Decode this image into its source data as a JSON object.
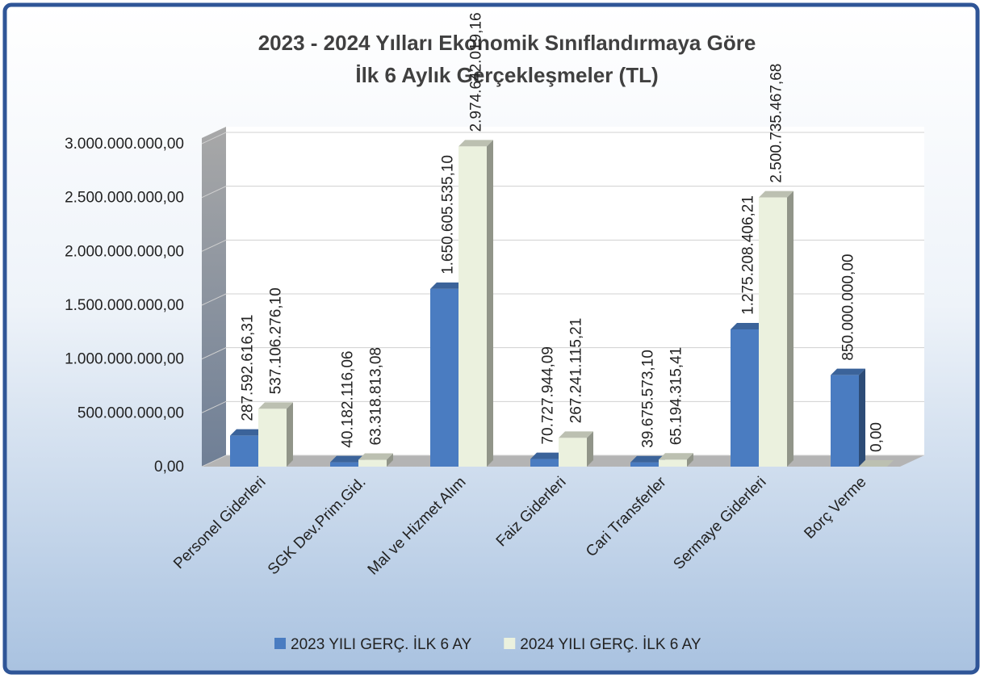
{
  "chart_data": {
    "type": "bar3d",
    "title": [
      "2023 - 2024 Yılları Ekonomik Sınıflandırmaya Göre",
      "İlk 6 Aylık Gerçekleşmeler (TL)"
    ],
    "categories": [
      "Personel Giderleri",
      "SGK Dev.Prim.Gid.",
      "Mal ve Hizmet Alım",
      "Faiz Giderleri",
      "Cari Transferler",
      "Sermaye Giderleri",
      "Borç Verme"
    ],
    "series": [
      {
        "name": "2023 YILI GERÇ. İLK 6 AY",
        "color": "#4a7cc1",
        "values": [
          287592616.31,
          40182116.06,
          1650605535.1,
          70727944.09,
          39675573.1,
          1275208406.21,
          850000000.0
        ],
        "value_labels": [
          "287.592.616,31",
          "40.182.116,06",
          "1.650.605.535,10",
          "70.727.944,09",
          "39.675.573,10",
          "1.275.208.406,21",
          "850.000.000,00"
        ]
      },
      {
        "name": "2024 YILI GERÇ. İLK 6 AY",
        "color": "#ebf1de",
        "values": [
          537106276.1,
          63318813.08,
          2974642019.16,
          267241115.21,
          65194315.41,
          2500735467.68,
          0
        ],
        "value_labels": [
          "537.106.276,10",
          "63.318.813,08",
          "2.974.642.019,16",
          "267.241.115,21",
          "65.194.315,41",
          "2.500.735.467,68",
          "0,00"
        ]
      }
    ],
    "ylim": [
      0,
      3000000000
    ],
    "yticks": [
      {
        "value": 0,
        "label": "0,00"
      },
      {
        "value": 500000000,
        "label": "500.000.000,00"
      },
      {
        "value": 1000000000,
        "label": "1.000.000.000,00"
      },
      {
        "value": 1500000000,
        "label": "1.500.000.000,00"
      },
      {
        "value": 2000000000,
        "label": "2.000.000.000,00"
      },
      {
        "value": 2500000000,
        "label": "2.500.000.000,00"
      },
      {
        "value": 3000000000,
        "label": "3.000.000.000,00"
      }
    ],
    "grid": true
  }
}
